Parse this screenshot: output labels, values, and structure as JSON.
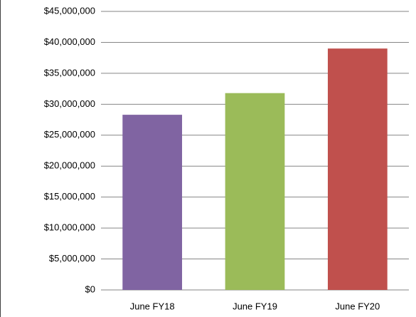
{
  "chart_data": {
    "type": "bar",
    "categories": [
      "June FY18",
      "June FY19",
      "June FY20"
    ],
    "values": [
      28300000,
      31800000,
      39000000
    ],
    "colors": [
      "#8064a2",
      "#9bbb59",
      "#c0504d"
    ],
    "ylim": [
      0,
      45000000
    ],
    "yticks": [
      {
        "value": 0,
        "label": "$0"
      },
      {
        "value": 5000000,
        "label": "$5,000,000"
      },
      {
        "value": 10000000,
        "label": "$10,000,000"
      },
      {
        "value": 15000000,
        "label": "$15,000,000"
      },
      {
        "value": 20000000,
        "label": "$20,000,000"
      },
      {
        "value": 25000000,
        "label": "$25,000,000"
      },
      {
        "value": 30000000,
        "label": "$30,000,000"
      },
      {
        "value": 35000000,
        "label": "$35,000,000"
      },
      {
        "value": 40000000,
        "label": "$40,000,000"
      },
      {
        "value": 45000000,
        "label": "$45,000,000"
      }
    ],
    "grid": true
  }
}
